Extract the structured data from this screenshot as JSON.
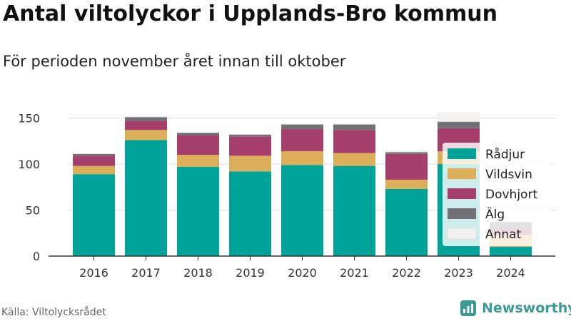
{
  "title": "Antal viltolyckor i Upplands-Bro kommun",
  "subtitle": "För perioden november året innan till oktober",
  "source": "Källa: Viltolycksrådet",
  "brand": "Newsworthy",
  "colors": {
    "Rådjur": "#00a398",
    "Vildsvin": "#dcae5a",
    "Dovhjort": "#a63f6b",
    "Älg": "#717176",
    "Annat": "#f3f2f0",
    "brand": "#3a9a94"
  },
  "chart_data": {
    "type": "bar",
    "stacked": true,
    "categories": [
      "2016",
      "2017",
      "2018",
      "2019",
      "2020",
      "2021",
      "2022",
      "2023",
      "2024"
    ],
    "series": [
      {
        "name": "Rådjur",
        "values": [
          89,
          126,
          97,
          92,
          99,
          98,
          73,
          100,
          10
        ]
      },
      {
        "name": "Vildsvin",
        "values": [
          9,
          11,
          13,
          17,
          15,
          14,
          10,
          14,
          13
        ]
      },
      {
        "name": "Dovhjort",
        "values": [
          11,
          10,
          21,
          21,
          24,
          25,
          28,
          25,
          7
        ]
      },
      {
        "name": "Älg",
        "values": [
          2,
          4,
          3,
          2,
          5,
          6,
          2,
          7,
          7
        ]
      },
      {
        "name": "Annat",
        "values": [
          1,
          1,
          0,
          0,
          1,
          1,
          2,
          10,
          0
        ]
      }
    ],
    "yticks": [
      0,
      50,
      100,
      150
    ],
    "ylim": [
      0,
      160
    ],
    "grid": true,
    "legend": "right"
  }
}
